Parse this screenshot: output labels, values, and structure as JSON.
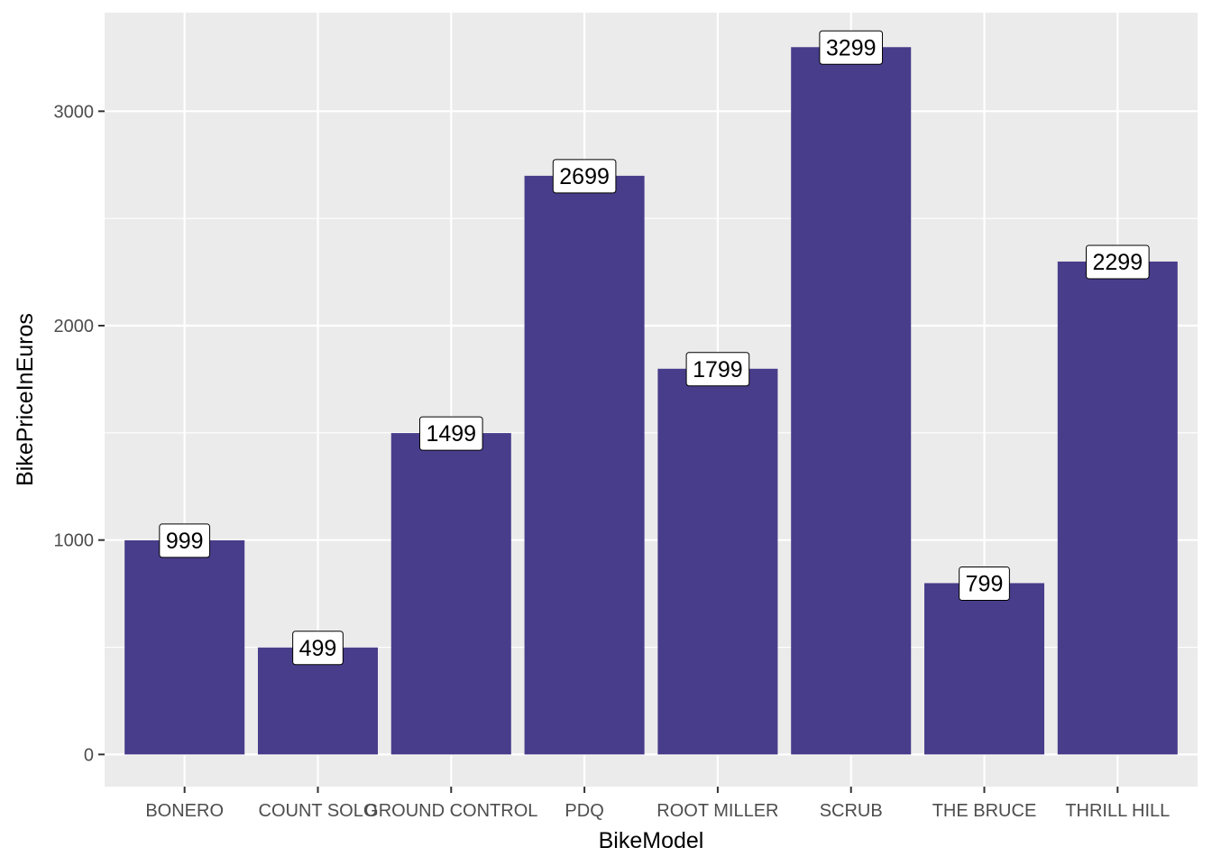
{
  "chart_data": {
    "type": "bar",
    "categories": [
      "BONERO",
      "COUNT SOLO",
      "GROUND CONTROL",
      "PDQ",
      "ROOT MILLER",
      "SCRUB",
      "THE BRUCE",
      "THRILL HILL"
    ],
    "values": [
      999,
      499,
      1499,
      2699,
      1799,
      3299,
      799,
      2299
    ],
    "data_labels": [
      "999",
      "499",
      "1499",
      "2699",
      "1799",
      "3299",
      "799",
      "2299"
    ],
    "xlabel": "BikeModel",
    "ylabel": "BikePriceInEuros",
    "ylim": [
      -150,
      3460
    ],
    "yticks": [
      0,
      1000,
      2000,
      3000
    ],
    "ytick_labels": [
      "0",
      "1000",
      "2000",
      "3000"
    ],
    "grid": true,
    "legend": "none",
    "colors": {
      "bar": "#483D8B",
      "panel": "#EBEBEB",
      "grid": "#FFFFFF",
      "tick_text": "#4D4D4D",
      "label_box": "#FFFFFF"
    }
  }
}
